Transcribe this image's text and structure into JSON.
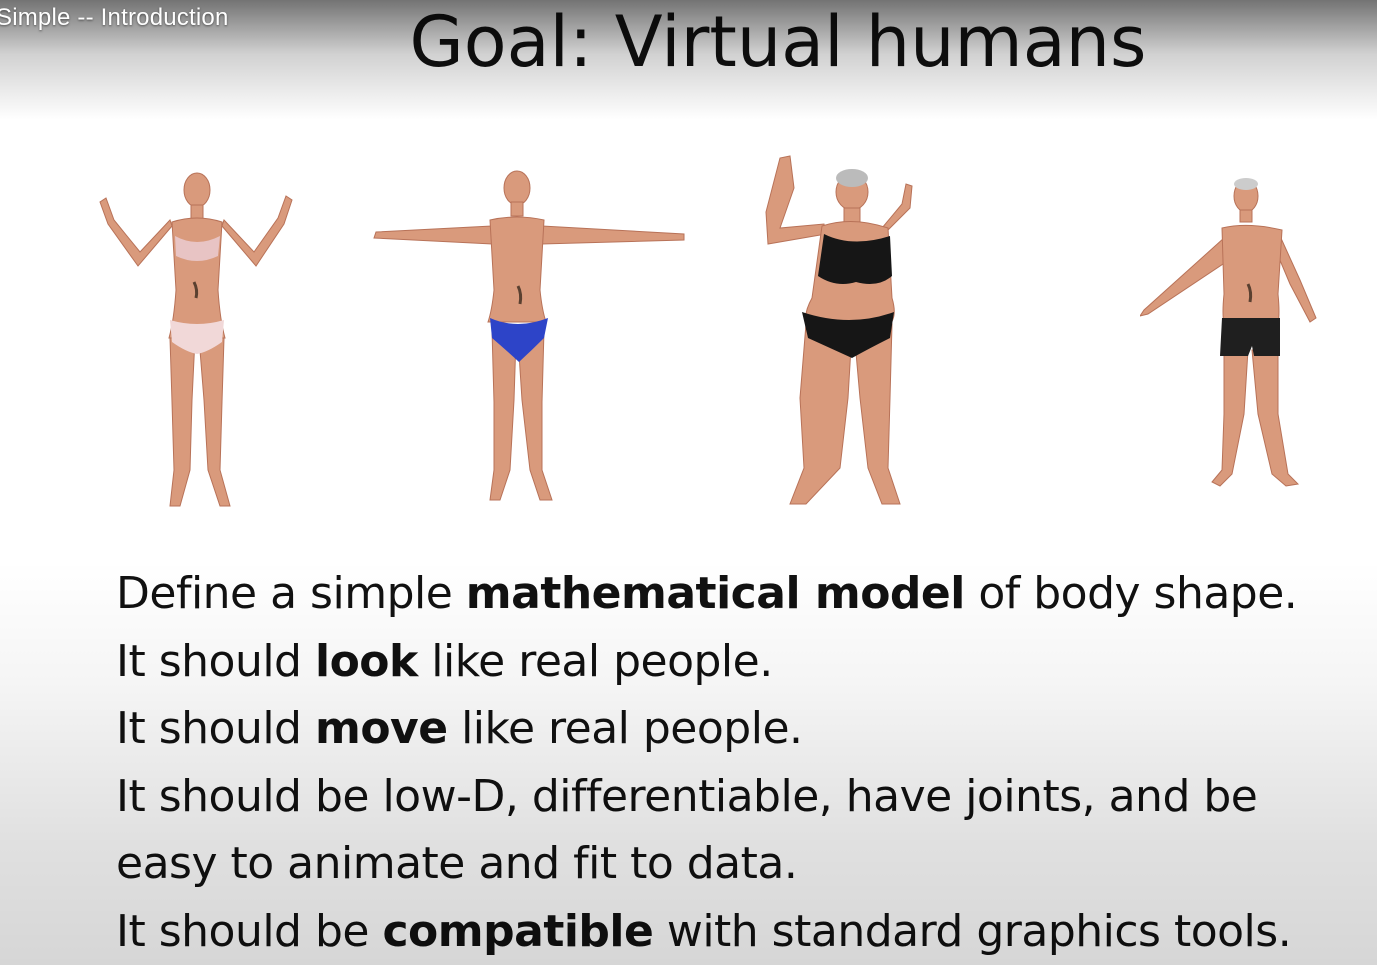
{
  "video": {
    "title": "Simple -- Introduction"
  },
  "slide": {
    "title": "Goal: Virtual humans",
    "figures": [
      {
        "name": "woman-arms-raised",
        "top_color": "#e8c4c4",
        "bottom_color": "#f1d8d8"
      },
      {
        "name": "man-t-pose",
        "bottom_color": "#2d44c8"
      },
      {
        "name": "woman-one-arm-up",
        "top_color": "#161616",
        "bottom_color": "#161616"
      },
      {
        "name": "man-turned",
        "bottom_color": "#1f1f1f"
      }
    ],
    "lines": [
      {
        "pre": "Define a simple ",
        "bold": "mathematical model",
        "post": " of body shape."
      },
      {
        "pre": "It should ",
        "bold": "look",
        "post": " like real people."
      },
      {
        "pre": "It should ",
        "bold": "move",
        "post": " like real people."
      },
      {
        "pre": "It should be low-D, differentiable, have joints, and be",
        "bold": "",
        "post": ""
      },
      {
        "pre": "easy to animate and fit to data.",
        "bold": "",
        "post": ""
      },
      {
        "pre": "It should be ",
        "bold": "compatible",
        "post": " with standard graphics tools."
      }
    ]
  },
  "colors": {
    "skin": "#d99a7c",
    "skin_shadow": "#b87258",
    "text": "#111111"
  }
}
